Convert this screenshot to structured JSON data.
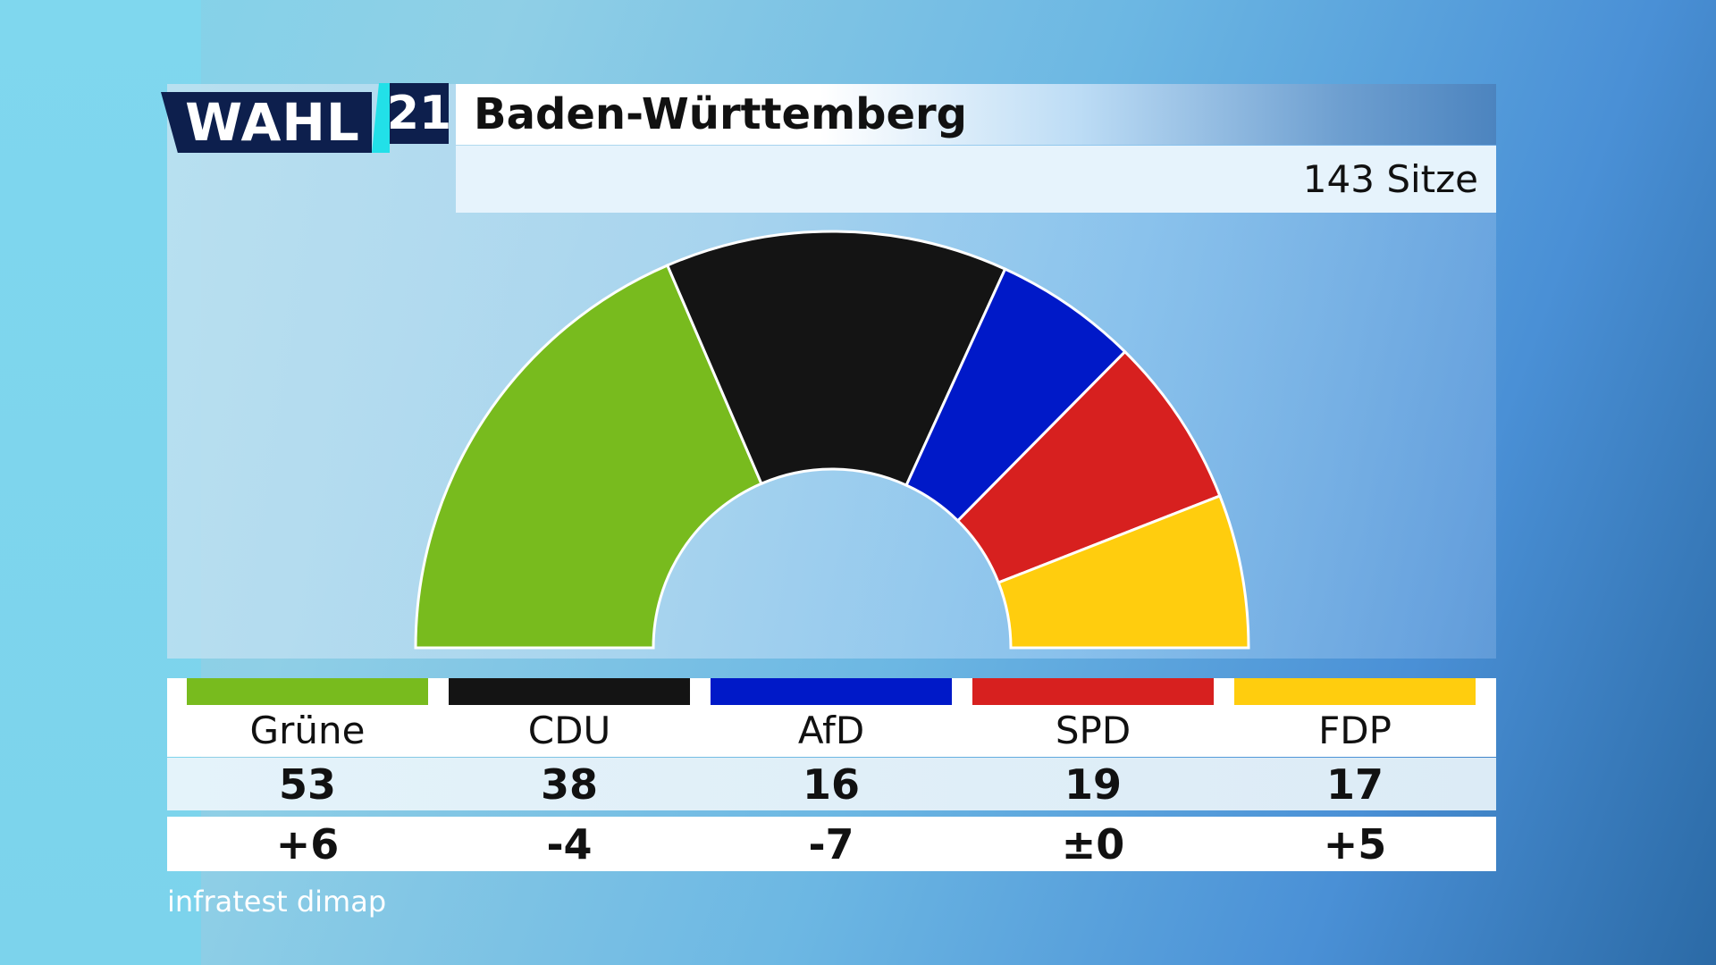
{
  "header": {
    "logo_word": "WAHL",
    "logo_number": "21",
    "title": "Baden-Württemberg",
    "seats_label": "143 Sitze"
  },
  "chart_data": {
    "type": "parliament-semicircle",
    "total_seats": 143,
    "parties": [
      {
        "name": "Grüne",
        "seats": 53,
        "change": "+6",
        "color": "#78bb1e"
      },
      {
        "name": "CDU",
        "seats": 38,
        "change": "-4",
        "color": "#141414"
      },
      {
        "name": "AfD",
        "seats": 16,
        "change": "-7",
        "color": "#0019c8"
      },
      {
        "name": "SPD",
        "seats": 19,
        "change": "±0",
        "color": "#d7201f"
      },
      {
        "name": "FDP",
        "seats": 17,
        "change": "+5",
        "color": "#ffcd0e"
      }
    ]
  },
  "source": "infratest dimap"
}
